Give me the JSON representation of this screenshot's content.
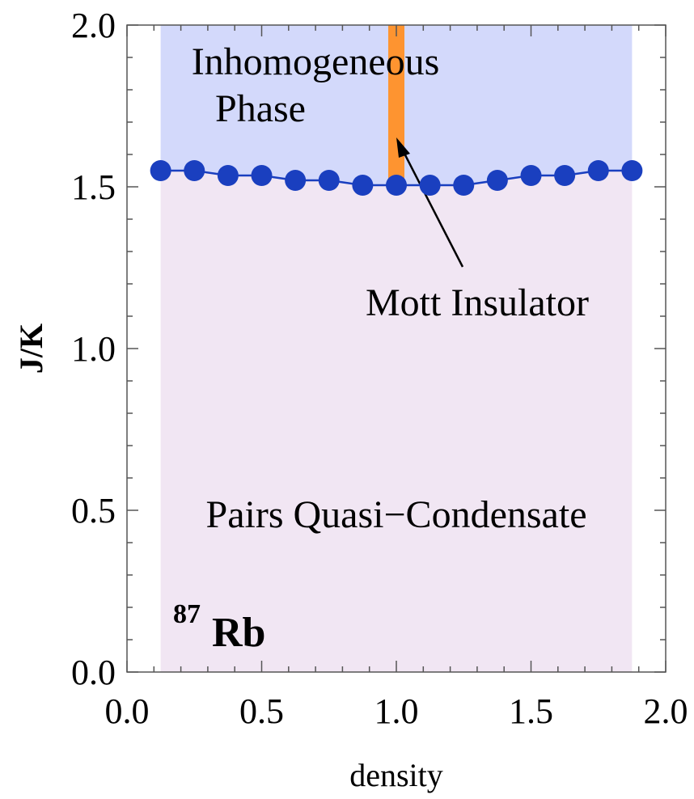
{
  "chart_data": {
    "type": "scatter",
    "xlabel": "density",
    "ylabel": "J/K",
    "xlim": [
      0.0,
      2.0
    ],
    "ylim": [
      0.0,
      2.0
    ],
    "x_ticks": [
      "0.0",
      "0.5",
      "1.0",
      "1.5",
      "2.0"
    ],
    "y_ticks": [
      "0.0",
      "0.5",
      "1.0",
      "1.5",
      "2.0"
    ],
    "series": [
      {
        "x": [
          0.125,
          0.25,
          0.375,
          0.5,
          0.625,
          0.75,
          0.875,
          1.0,
          1.125,
          1.25,
          1.375,
          1.5,
          1.625,
          1.75,
          1.875
        ],
        "y": [
          1.55,
          1.55,
          1.535,
          1.535,
          1.52,
          1.52,
          1.505,
          1.505,
          1.505,
          1.505,
          1.52,
          1.535,
          1.535,
          1.55,
          1.55
        ],
        "color": "#1a3fbf"
      }
    ],
    "regions": [
      {
        "label": "Pairs Quasi−Condensate",
        "x": [
          0.125,
          1.875
        ],
        "y": [
          0.0,
          "boundary"
        ],
        "color": "#f1e6f3"
      },
      {
        "label": "Inhomogeneous Phase",
        "label_lines": [
          "Inhomogeneous",
          "Phase"
        ],
        "x": [
          0.125,
          1.875
        ],
        "y": [
          "boundary",
          2.0
        ],
        "color": "#d3d9fb"
      }
    ],
    "mott_insulator": {
      "label": "Mott Insulator",
      "x": 1.0,
      "y": [
        1.49,
        2.0
      ],
      "color": "#fe9430"
    },
    "element_label": {
      "mass_number": "87",
      "symbol": "Rb"
    },
    "grid": false
  }
}
